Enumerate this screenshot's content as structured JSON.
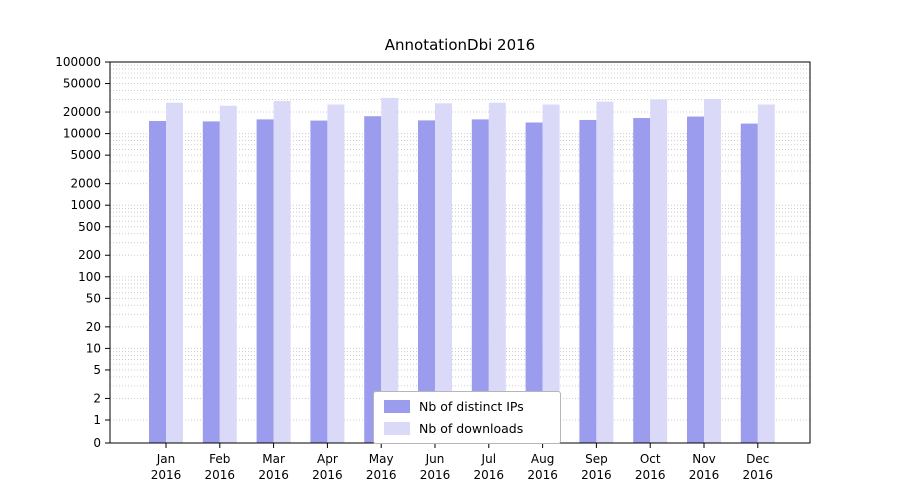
{
  "chart_data": {
    "type": "bar",
    "title": "AnnotationDbi 2016",
    "xlabel": "",
    "ylabel": "",
    "scale": "symlog",
    "grid": true,
    "legend_position": "bottom-center",
    "year": "2016",
    "categories": [
      "Jan",
      "Feb",
      "Mar",
      "Apr",
      "May",
      "Jun",
      "Jul",
      "Aug",
      "Sep",
      "Oct",
      "Nov",
      "Dec"
    ],
    "series": [
      {
        "name": "Nb of distinct IPs",
        "color": "#9c9cee",
        "values": [
          15000,
          14800,
          15800,
          15200,
          17500,
          15300,
          15800,
          14300,
          15500,
          16500,
          17300,
          13800
        ]
      },
      {
        "name": "Nb of downloads",
        "color": "#dadaf8",
        "values": [
          27000,
          24500,
          28500,
          25500,
          31500,
          26500,
          27000,
          25500,
          28000,
          30000,
          30500,
          25500
        ]
      }
    ],
    "yticks": [
      0,
      1,
      2,
      5,
      10,
      20,
      50,
      100,
      200,
      500,
      1000,
      2000,
      5000,
      10000,
      20000,
      50000,
      100000
    ],
    "ylim": [
      0,
      100000
    ],
    "colors": {
      "gridline": "#cccccc",
      "axis": "#000000",
      "background": "#ffffff"
    }
  }
}
